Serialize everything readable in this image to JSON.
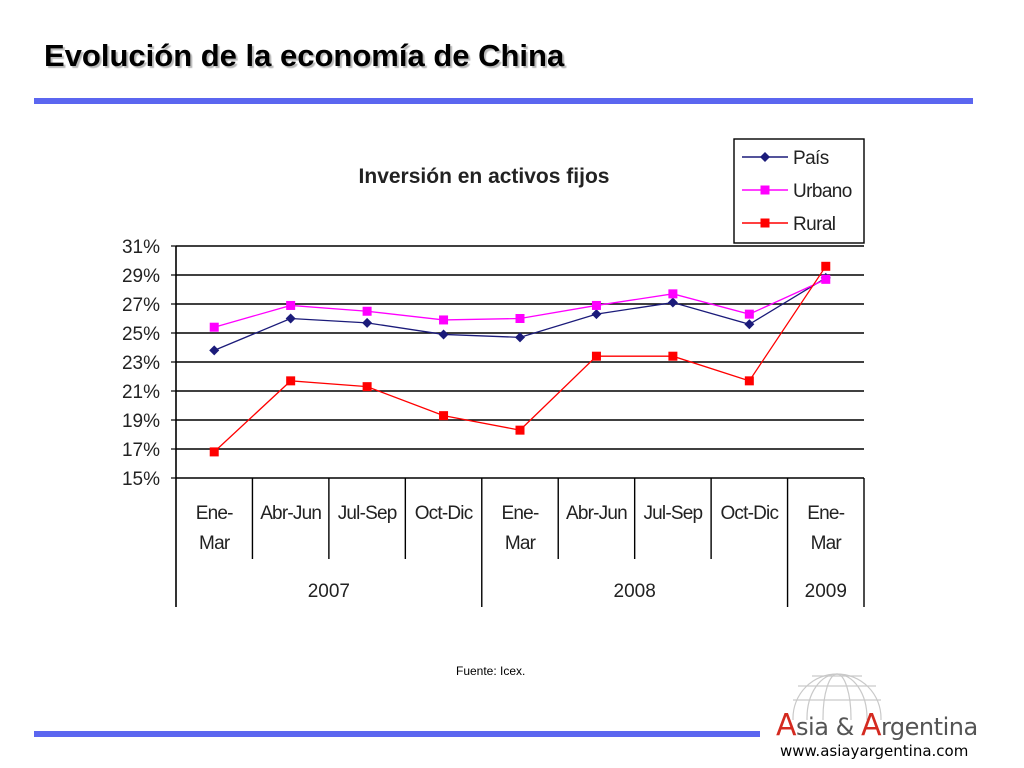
{
  "slide": {
    "title": "Evolución de la economía de China",
    "source_note": "Fuente: Icex."
  },
  "logo": {
    "brand": "Asia & Argentina",
    "url": "www.asiayargentina.com"
  },
  "colors": {
    "rule": "#5b66f0",
    "pais": "#1b1b7a",
    "urbano": "#ff00ff",
    "rural": "#ff0000"
  },
  "chart_data": {
    "type": "line",
    "title": "Inversión en activos fijos",
    "categories": [
      "Ene-Mar",
      "Abr-Jun",
      "Jul-Sep",
      "Oct-Dic",
      "Ene-Mar",
      "Abr-Jun",
      "Jul-Sep",
      "Oct-Dic",
      "Ene-Mar"
    ],
    "category_lines": [
      [
        "Ene-",
        "Mar"
      ],
      [
        "Abr-Jun"
      ],
      [
        "Jul-Sep"
      ],
      [
        "Oct-Dic"
      ],
      [
        "Ene-",
        "Mar"
      ],
      [
        "Abr-Jun"
      ],
      [
        "Jul-Sep"
      ],
      [
        "Oct-Dic"
      ],
      [
        "Ene-",
        "Mar"
      ]
    ],
    "groups": [
      {
        "label": "2007",
        "span": 4
      },
      {
        "label": "2008",
        "span": 4
      },
      {
        "label": "2009",
        "span": 1
      }
    ],
    "series": [
      {
        "name": "País",
        "marker": "diamond",
        "color": "#1b1b7a",
        "values": [
          23.8,
          26.0,
          25.7,
          24.9,
          24.7,
          26.3,
          27.1,
          25.6,
          28.8
        ]
      },
      {
        "name": "Urbano",
        "marker": "square",
        "color": "#ff00ff",
        "values": [
          25.4,
          26.9,
          26.5,
          25.9,
          26.0,
          26.9,
          27.7,
          26.3,
          28.7
        ]
      },
      {
        "name": "Rural",
        "marker": "square",
        "color": "#ff0000",
        "values": [
          16.8,
          21.7,
          21.3,
          19.3,
          18.3,
          23.4,
          23.4,
          21.7,
          29.6
        ]
      }
    ],
    "ylim": [
      15,
      31
    ],
    "yticks": [
      15,
      17,
      19,
      21,
      23,
      25,
      27,
      29,
      31
    ],
    "ytick_labels": [
      "15%",
      "17%",
      "19%",
      "21%",
      "23%",
      "25%",
      "27%",
      "29%",
      "31%"
    ],
    "grid": true,
    "legend_position": "top-right"
  }
}
